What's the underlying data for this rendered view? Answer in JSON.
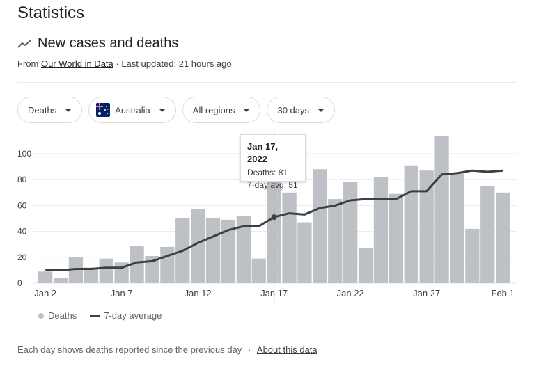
{
  "page": {
    "title": "Statistics"
  },
  "section": {
    "title": "New cases and deaths",
    "source_prefix": "From",
    "source_link": "Our World in Data",
    "updated": "· Last updated: 21 hours ago"
  },
  "filters": {
    "metric": "Deaths",
    "country": "Australia",
    "region": "All regions",
    "period": "30 days"
  },
  "tooltip": {
    "date": "Jan 17, 2022",
    "deaths": "Deaths: 81",
    "avg": "7-day avg: 51"
  },
  "legend": {
    "bars": "Deaths",
    "line": "7-day average"
  },
  "footer": {
    "note": "Each day shows deaths reported since the previous day",
    "separator": "·",
    "link": "About this data"
  },
  "colors": {
    "bar": "#bdc1c6",
    "line": "#3c4043",
    "grid": "#e8eaed"
  },
  "chart_data": {
    "type": "bar",
    "title": "New cases and deaths",
    "x": [
      "Jan 2",
      "Jan 3",
      "Jan 4",
      "Jan 5",
      "Jan 6",
      "Jan 7",
      "Jan 8",
      "Jan 9",
      "Jan 10",
      "Jan 11",
      "Jan 12",
      "Jan 13",
      "Jan 14",
      "Jan 15",
      "Jan 16",
      "Jan 17",
      "Jan 18",
      "Jan 19",
      "Jan 20",
      "Jan 21",
      "Jan 22",
      "Jan 23",
      "Jan 24",
      "Jan 25",
      "Jan 26",
      "Jan 27",
      "Jan 28",
      "Jan 29",
      "Jan 30",
      "Jan 31",
      "Feb 1"
    ],
    "x_tick_labels": [
      "Jan 2",
      "Jan 7",
      "Jan 12",
      "Jan 17",
      "Jan 22",
      "Jan 27",
      "Feb 1"
    ],
    "series": [
      {
        "name": "Deaths",
        "type": "bar",
        "values": [
          9,
          4,
          20,
          12,
          19,
          16,
          29,
          21,
          28,
          50,
          57,
          50,
          49,
          52,
          19,
          81,
          70,
          47,
          88,
          65,
          78,
          27,
          82,
          69,
          91,
          87,
          114,
          85,
          42,
          75,
          70
        ]
      },
      {
        "name": "7-day average",
        "type": "line",
        "values": [
          10,
          10,
          11,
          11,
          12,
          12,
          16,
          17,
          21,
          25,
          31,
          36,
          41,
          44,
          44,
          51,
          54,
          53,
          58,
          60,
          64,
          65,
          65,
          65,
          71,
          71,
          84,
          85,
          87,
          86,
          87
        ]
      }
    ],
    "ylim": [
      0,
      115
    ],
    "y_ticks": [
      0,
      20,
      40,
      60,
      80,
      100
    ],
    "grid": true,
    "highlight_index": 15,
    "xlabel": "",
    "ylabel": ""
  }
}
